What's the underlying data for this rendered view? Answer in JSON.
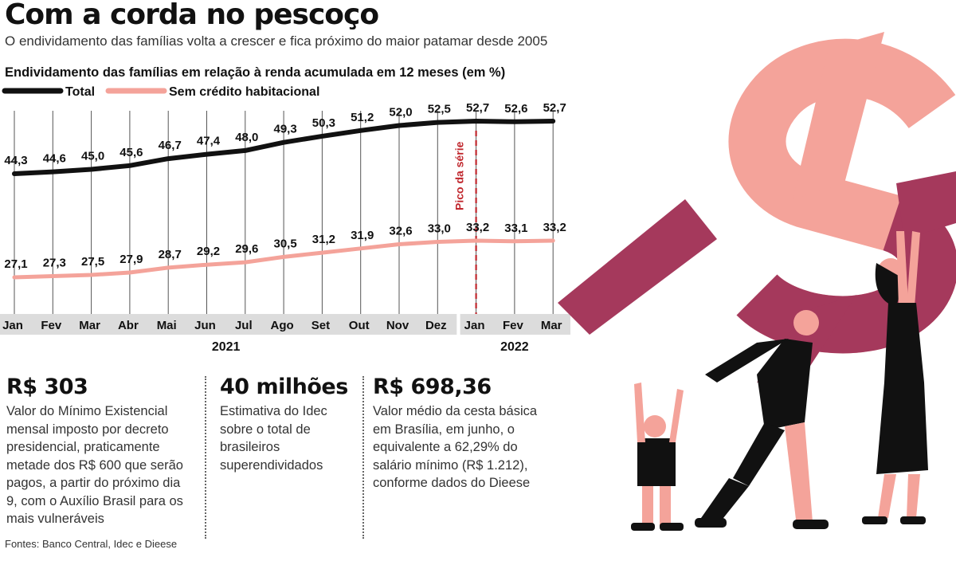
{
  "header": {
    "title": "Com a corda no pescoço",
    "subtitle": "O endividamento das famílias volta a crescer e fica próximo do maior patamar desde 2005"
  },
  "chart_data": {
    "type": "line",
    "title": "Endividamento das famílias em relação à renda acumulada em 12 meses (em %)",
    "categories": [
      "Jan",
      "Fev",
      "Mar",
      "Abr",
      "Mai",
      "Jun",
      "Jul",
      "Ago",
      "Set",
      "Out",
      "Nov",
      "Dez",
      "Jan",
      "Fev",
      "Mar"
    ],
    "years": [
      {
        "label": "2021",
        "months": 12
      },
      {
        "label": "2022",
        "months": 3
      }
    ],
    "series": [
      {
        "name": "Total",
        "color": "#111111",
        "values": [
          44.3,
          44.6,
          45.0,
          45.6,
          46.7,
          47.4,
          48.0,
          49.3,
          50.3,
          51.2,
          52.0,
          52.5,
          52.7,
          52.6,
          52.7
        ],
        "labels": [
          "44,3",
          "44,6",
          "45,0",
          "45,6",
          "46,7",
          "47,4",
          "48,0",
          "49,3",
          "50,3",
          "51,2",
          "52,0",
          "52,5",
          "52,7",
          "52,6",
          "52,7"
        ]
      },
      {
        "name": "Sem crédito habitacional",
        "color": "#f4a39a",
        "values": [
          27.1,
          27.3,
          27.5,
          27.9,
          28.7,
          29.2,
          29.6,
          30.5,
          31.2,
          31.9,
          32.6,
          33.0,
          33.2,
          33.1,
          33.2
        ],
        "labels": [
          "27,1",
          "27,3",
          "27,5",
          "27,9",
          "28,7",
          "29,2",
          "29,6",
          "30,5",
          "31,2",
          "31,9",
          "32,6",
          "33,0",
          "33,2",
          "33,1",
          "33,2"
        ]
      }
    ],
    "annotation": {
      "text": "Pico da série",
      "index": 12
    },
    "legend_position": "top-left",
    "grid": true
  },
  "stats": [
    {
      "value": "R$ 303",
      "text": "Valor do Mínimo Existencial mensal imposto por decreto presidencial, praticamente metade dos R$ 600 que serão pagos, a partir do próximo dia 9, com o Auxílio Brasil para os mais vulneráveis"
    },
    {
      "value": "40 milhões",
      "text": "Estimativa do Idec sobre o total de brasileiros superendividados"
    },
    {
      "value": "R$ 698,36",
      "text": "Valor médio da cesta básica em Brasília, em junho, o equivalente a 62,29% do salário mínimo (R$ 1.212), conforme dados do Dieese"
    }
  ],
  "footer": {
    "sources": "Fontes: Banco Central, Idec e Dieese"
  },
  "illustration": {
    "icon": "dollar-sign-burden-illustration",
    "colors": {
      "light": "#f4a39a",
      "dark": "#a5395c",
      "figure": "#111111"
    }
  }
}
